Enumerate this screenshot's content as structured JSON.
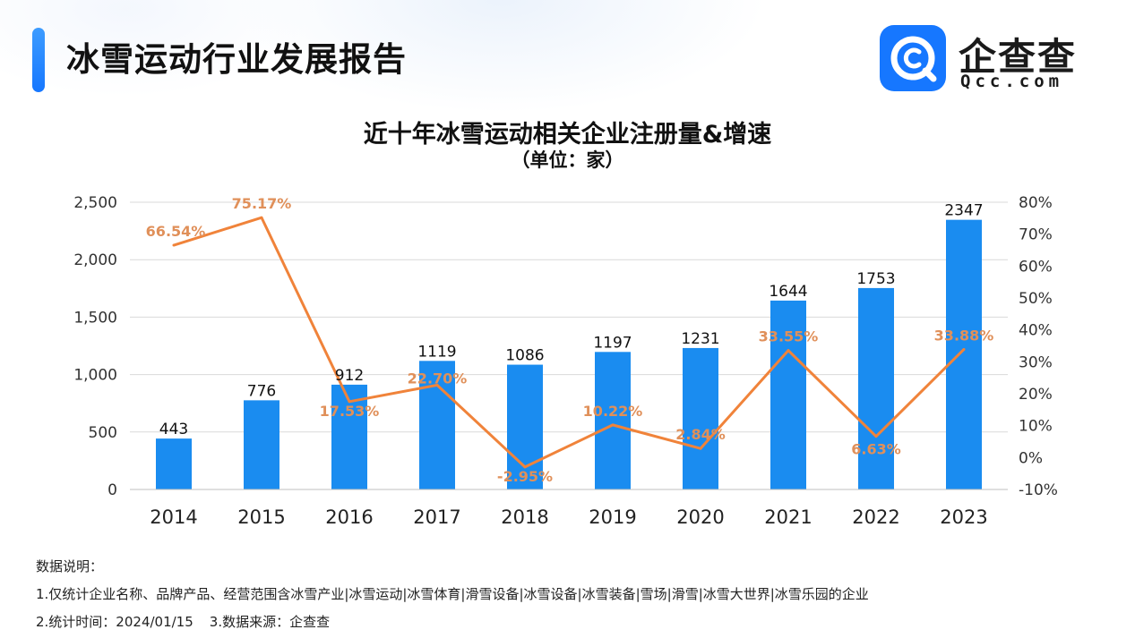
{
  "header": {
    "title": "冰雪运动行业发展报告"
  },
  "logo": {
    "name": "企查查",
    "domain": "Qcc.com"
  },
  "chart_data": {
    "type": "bar",
    "title": "近十年冰雪运动相关企业注册量&增速",
    "subtitle": "（单位：家）",
    "categories": [
      "2014",
      "2015",
      "2016",
      "2017",
      "2018",
      "2019",
      "2020",
      "2021",
      "2022",
      "2023"
    ],
    "y_left": {
      "range": [
        0,
        2500
      ],
      "ticks": [
        0,
        500,
        1000,
        1500,
        2000,
        2500
      ],
      "tick_labels": [
        "0",
        "500",
        "1,000",
        "1,500",
        "2,000",
        "2,500"
      ]
    },
    "y_right": {
      "range": [
        -10,
        80
      ],
      "ticks": [
        -10,
        0,
        10,
        20,
        30,
        40,
        50,
        60,
        70,
        80
      ],
      "tick_labels": [
        "-10%",
        "0%",
        "10%",
        "20%",
        "30%",
        "40%",
        "50%",
        "60%",
        "70%",
        "80%"
      ]
    },
    "grid": true,
    "series": [
      {
        "type": "bar",
        "axis": "left",
        "color": "#1a8cf0",
        "values": [
          443,
          776,
          912,
          1119,
          1086,
          1197,
          1231,
          1644,
          1753,
          2347
        ],
        "labels": [
          "443",
          "776",
          "912",
          "1119",
          "1086",
          "1197",
          "1231",
          "1644",
          "1753",
          "2347"
        ]
      },
      {
        "type": "line",
        "axis": "right",
        "color": "#f0833a",
        "label_color": "#e0905a",
        "values": [
          66.54,
          75.17,
          17.53,
          22.7,
          -2.95,
          10.22,
          2.84,
          33.55,
          6.63,
          33.88
        ],
        "labels": [
          "66.54%",
          "75.17%",
          "17.53%",
          "22.70%",
          "-2.95%",
          "10.22%",
          "2.84%",
          "33.55%",
          "6.63%",
          "33.88%"
        ]
      }
    ]
  },
  "notes": {
    "heading": "数据说明：",
    "line1": "1.仅统计企业名称、品牌产品、经营范围含冰雪产业|冰雪运动|冰雪体育|滑雪设备|冰雪设备|冰雪装备|雪场|滑雪|冰雪大世界|冰雪乐园的企业",
    "line2a": "2.统计时间：2024/01/15",
    "line2b": "3.数据来源：企查查"
  }
}
